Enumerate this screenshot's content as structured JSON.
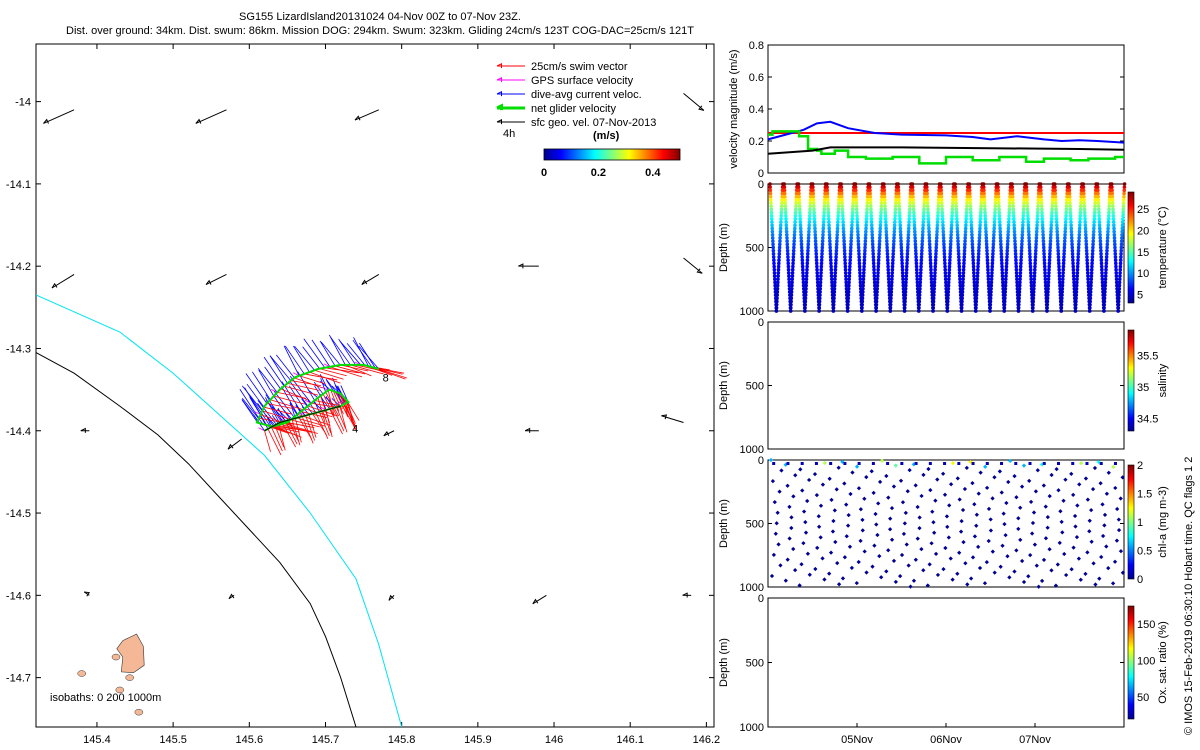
{
  "title": {
    "line1": "SG155 LizardIsland20131024 04-Nov 00Z to 07-Nov 23Z.",
    "line2": "Dist. over ground: 34km. Dist. swum: 86km. Mission DOG: 294km. Swum: 323km. Gliding 24cm/s 123T COG-DAC=25cm/s 121T"
  },
  "credit": "© IMOS 15-Feb-2019 06:30:10 Hobart time. QC flags 1  2",
  "colors": {
    "swim": "#ff0000",
    "gps": "#ff00ff",
    "dac": "#0000ff",
    "net": "#00dd00",
    "geo": "#000000",
    "isobath200": "#000000",
    "isobath1000": "#00e5ee",
    "island": "#f4b896"
  },
  "chart_data": [
    {
      "type": "scatter",
      "name": "track-map",
      "xlim": [
        145.32,
        146.21
      ],
      "ylim": [
        -14.76,
        -13.93
      ],
      "xticks": [
        145.4,
        145.5,
        145.6,
        145.7,
        145.8,
        145.9,
        146,
        146.1,
        146.2
      ],
      "yticks": [
        -14,
        -14.1,
        -14.2,
        -14.3,
        -14.4,
        -14.5,
        -14.6,
        -14.7
      ],
      "legend": [
        {
          "label": "25cm/s swim vector",
          "color": "#ff0000"
        },
        {
          "label": "GPS surface velocity",
          "color": "#ff00ff"
        },
        {
          "label": "dive-avg current veloc.",
          "color": "#0000ff"
        },
        {
          "label": "net glider velocity",
          "color": "#00dd00"
        },
        {
          "label": "sfc geo. vel. 07-Nov-2013",
          "color": "#000000"
        }
      ],
      "scale_label": "4h",
      "colorbar": {
        "label": "(m/s)",
        "ticks": [
          0,
          0.2,
          0.4
        ],
        "range": [
          0,
          0.5
        ]
      },
      "isobath_label": "isobaths: 0   200  1000m",
      "day_labels": [
        {
          "text": "8",
          "lon": 145.775,
          "lat": -14.335
        },
        {
          "text": "4",
          "lon": 145.735,
          "lat": -14.397
        }
      ],
      "track": [
        [
          145.62,
          -14.4
        ],
        [
          145.64,
          -14.39
        ],
        [
          145.66,
          -14.385
        ],
        [
          145.68,
          -14.38
        ],
        [
          145.7,
          -14.375
        ],
        [
          145.72,
          -14.37
        ],
        [
          145.73,
          -14.365
        ],
        [
          145.72,
          -14.355
        ],
        [
          145.705,
          -14.35
        ],
        [
          145.69,
          -14.36
        ],
        [
          145.67,
          -14.375
        ],
        [
          145.65,
          -14.39
        ],
        [
          145.63,
          -14.395
        ],
        [
          145.61,
          -14.39
        ],
        [
          145.62,
          -14.37
        ],
        [
          145.64,
          -14.35
        ],
        [
          145.66,
          -14.335
        ],
        [
          145.69,
          -14.325
        ],
        [
          145.72,
          -14.32
        ],
        [
          145.75,
          -14.32
        ],
        [
          145.77,
          -14.325
        ]
      ],
      "geo_vectors": [
        {
          "lon": 145.37,
          "lat": -14.01,
          "u": -0.18,
          "v": -0.08
        },
        {
          "lon": 145.57,
          "lat": -14.01,
          "u": -0.18,
          "v": -0.08
        },
        {
          "lon": 145.77,
          "lat": -14.01,
          "u": -0.14,
          "v": -0.06
        },
        {
          "lon": 146.17,
          "lat": -13.99,
          "u": 0.12,
          "v": -0.1
        },
        {
          "lon": 145.37,
          "lat": -14.21,
          "u": -0.13,
          "v": -0.08
        },
        {
          "lon": 145.57,
          "lat": -14.21,
          "u": -0.12,
          "v": -0.06
        },
        {
          "lon": 145.77,
          "lat": -14.21,
          "u": -0.1,
          "v": -0.06
        },
        {
          "lon": 145.98,
          "lat": -14.2,
          "u": -0.12,
          "v": 0
        },
        {
          "lon": 146.17,
          "lat": -14.19,
          "u": 0.11,
          "v": -0.09
        },
        {
          "lon": 145.39,
          "lat": -14.4,
          "u": -0.05,
          "v": 0
        },
        {
          "lon": 145.59,
          "lat": -14.41,
          "u": -0.08,
          "v": -0.06
        },
        {
          "lon": 145.79,
          "lat": -14.4,
          "u": -0.06,
          "v": -0.03
        },
        {
          "lon": 145.98,
          "lat": -14.4,
          "u": -0.08,
          "v": 0
        },
        {
          "lon": 146.17,
          "lat": -14.39,
          "u": -0.13,
          "v": 0.04
        },
        {
          "lon": 145.39,
          "lat": -14.6,
          "u": -0.03,
          "v": 0.02
        },
        {
          "lon": 145.58,
          "lat": -14.6,
          "u": -0.03,
          "v": -0.02
        },
        {
          "lon": 145.79,
          "lat": -14.6,
          "u": -0.03,
          "v": -0.03
        },
        {
          "lon": 145.99,
          "lat": -14.6,
          "u": -0.08,
          "v": -0.05
        },
        {
          "lon": 146.18,
          "lat": -14.6,
          "u": -0.05,
          "v": 0
        }
      ],
      "isobath_200m": [
        [
          145.32,
          -14.305
        ],
        [
          145.37,
          -14.33
        ],
        [
          145.43,
          -14.37
        ],
        [
          145.48,
          -14.405
        ],
        [
          145.52,
          -14.44
        ],
        [
          145.56,
          -14.48
        ],
        [
          145.6,
          -14.52
        ],
        [
          145.64,
          -14.56
        ],
        [
          145.68,
          -14.61
        ],
        [
          145.7,
          -14.65
        ],
        [
          145.72,
          -14.7
        ],
        [
          145.74,
          -14.76
        ]
      ],
      "isobath_1000m": [
        [
          145.32,
          -14.235
        ],
        [
          145.43,
          -14.28
        ],
        [
          145.5,
          -14.33
        ],
        [
          145.56,
          -14.38
        ],
        [
          145.62,
          -14.43
        ],
        [
          145.68,
          -14.5
        ],
        [
          145.74,
          -14.58
        ],
        [
          145.77,
          -14.66
        ],
        [
          145.8,
          -14.76
        ]
      ],
      "island": [
        [
          145.434,
          -14.655
        ],
        [
          145.452,
          -14.647
        ],
        [
          145.461,
          -14.662
        ],
        [
          145.462,
          -14.685
        ],
        [
          145.448,
          -14.694
        ],
        [
          145.432,
          -14.693
        ],
        [
          145.434,
          -14.675
        ],
        [
          145.426,
          -14.665
        ]
      ]
    },
    {
      "type": "line",
      "name": "velocity-panel",
      "ylabel": "velocity magnitude (m/s)",
      "ylim": [
        0,
        0.8
      ],
      "yticks": [
        0,
        0.2,
        0.4,
        0.6,
        0.8
      ],
      "xlim": [
        0,
        4
      ],
      "series": [
        {
          "name": "swim",
          "color": "#ff0000",
          "x": [
            0,
            4
          ],
          "values": [
            0.25,
            0.25
          ]
        },
        {
          "name": "dac",
          "color": "#0000ff",
          "x": [
            0,
            0.2,
            0.4,
            0.55,
            0.7,
            0.9,
            1.2,
            1.5,
            2.0,
            2.3,
            2.5,
            2.8,
            3.1,
            3.3,
            3.5,
            3.7,
            4.0
          ],
          "values": [
            0.21,
            0.24,
            0.27,
            0.31,
            0.32,
            0.28,
            0.25,
            0.24,
            0.235,
            0.225,
            0.21,
            0.23,
            0.21,
            0.2,
            0.205,
            0.2,
            0.19
          ]
        },
        {
          "name": "net",
          "color": "#00dd00",
          "x": [
            0,
            0.05,
            0.2,
            0.35,
            0.45,
            0.55,
            0.6,
            0.75,
            0.9,
            1.1,
            1.4,
            1.7,
            2.0,
            2.3,
            2.6,
            2.9,
            3.1,
            3.4,
            3.6,
            3.9,
            4.0
          ],
          "values": [
            0.24,
            0.26,
            0.26,
            0.23,
            0.15,
            0.14,
            0.12,
            0.14,
            0.1,
            0.09,
            0.1,
            0.06,
            0.1,
            0.08,
            0.1,
            0.07,
            0.09,
            0.08,
            0.09,
            0.1,
            0.1
          ]
        },
        {
          "name": "geo",
          "color": "#000000",
          "x": [
            0,
            0.5,
            0.7,
            1.5,
            2.5,
            3.5,
            4.0
          ],
          "values": [
            0.12,
            0.14,
            0.16,
            0.16,
            0.155,
            0.15,
            0.145
          ]
        }
      ]
    },
    {
      "type": "scatter",
      "name": "temperature-panel",
      "ylabel": "Depth (m)",
      "ylim": [
        0,
        1000
      ],
      "yticks": [
        0,
        500,
        1000
      ],
      "colorbar": {
        "label": "temperature (°C)",
        "range": [
          3,
          29
        ],
        "ticks": [
          5,
          10,
          15,
          20,
          25
        ]
      },
      "profiles": 25,
      "max_depth": 1000
    },
    {
      "type": "scatter",
      "name": "salinity-panel",
      "ylabel": "Depth (m)",
      "ylim": [
        0,
        1000
      ],
      "yticks": [
        0,
        500,
        1000
      ],
      "colorbar": {
        "label": "salinity",
        "range": [
          34.3,
          35.9
        ],
        "ticks": [
          34.5,
          35,
          35.5
        ]
      }
    },
    {
      "type": "scatter",
      "name": "chla-panel",
      "ylabel": "Depth (m)",
      "ylim": [
        0,
        1000
      ],
      "yticks": [
        0,
        500,
        1000
      ],
      "colorbar": {
        "label": "chl-a (mg m-3)",
        "range": [
          0,
          2
        ],
        "ticks": [
          0,
          0.5,
          1,
          1.5,
          2
        ]
      },
      "profiles": 25
    },
    {
      "type": "scatter",
      "name": "oxygen-panel",
      "ylabel": "Depth (m)",
      "ylim": [
        0,
        1000
      ],
      "yticks": [
        0,
        500,
        1000
      ],
      "colorbar": {
        "label": "Ox. sat. ratio (%)",
        "range": [
          20,
          175
        ],
        "ticks": [
          50,
          100,
          150
        ]
      },
      "xticks": [
        {
          "label": "05Nov",
          "day": 1
        },
        {
          "label": "06Nov",
          "day": 2
        },
        {
          "label": "07Nov",
          "day": 3
        }
      ],
      "xlim": [
        0,
        4
      ]
    }
  ]
}
